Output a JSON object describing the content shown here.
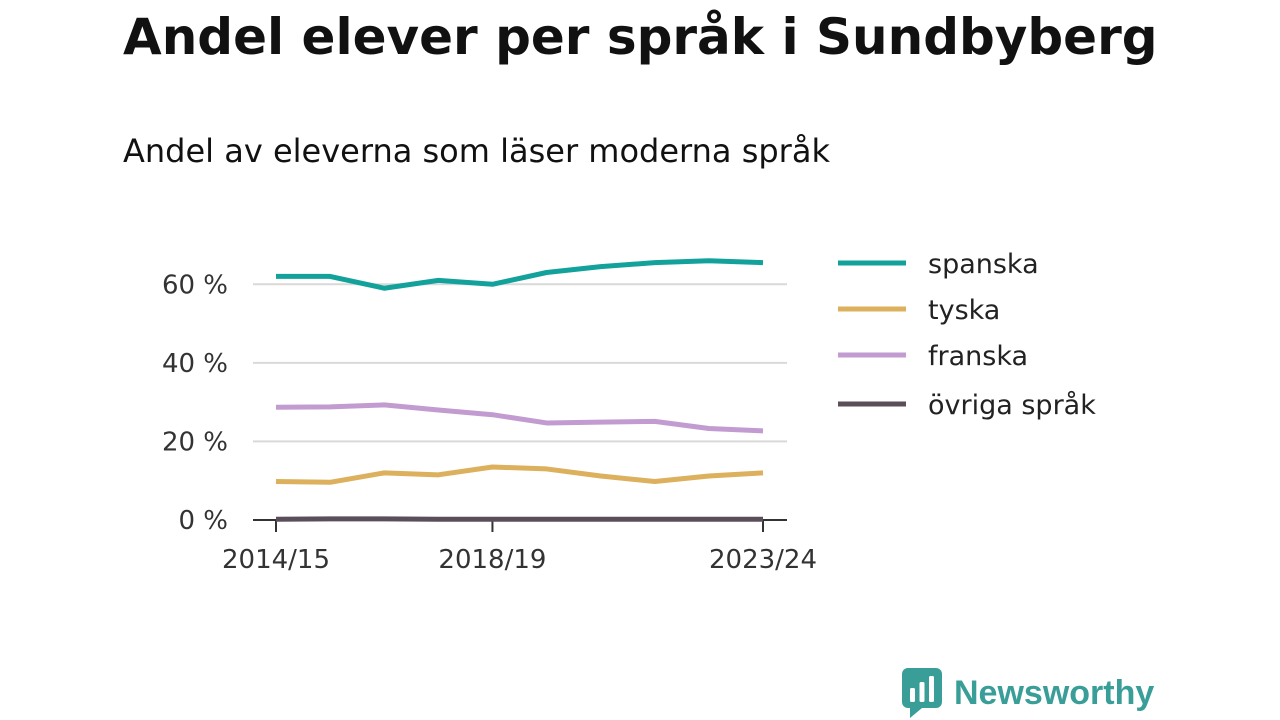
{
  "title": "Andel elever per språk i Sundbyberg",
  "subtitle": "Andel av eleverna som läser moderna språk",
  "brand": {
    "name": "Newsworthy",
    "color": "#3a9e98",
    "icon": "bar-chart-icon"
  },
  "chart_data": {
    "type": "line",
    "title": "Andel elever per språk i Sundbyberg",
    "subtitle": "Andel av eleverna som läser moderna språk",
    "xlabel": "",
    "ylabel": "",
    "x": [
      "2014/15",
      "2015/16",
      "2016/17",
      "2017/18",
      "2018/19",
      "2019/20",
      "2020/21",
      "2021/22",
      "2022/23",
      "2023/24"
    ],
    "x_tick_labels": [
      "2014/15",
      "2018/19",
      "2023/24"
    ],
    "x_tick_indices": [
      0,
      4,
      9
    ],
    "y_ticks": [
      0,
      20,
      40,
      60
    ],
    "y_tick_labels": [
      "0 %",
      "20 %",
      "40 %",
      "60 %"
    ],
    "ylim": [
      0,
      70
    ],
    "grid": true,
    "legend_position": "right",
    "series": [
      {
        "name": "spanska",
        "color": "#13a29b",
        "values": [
          62.0,
          62.0,
          59.0,
          61.0,
          60.0,
          63.0,
          64.5,
          65.5,
          66.0,
          65.5
        ]
      },
      {
        "name": "tyska",
        "color": "#dcb05c",
        "values": [
          9.8,
          9.6,
          12.0,
          11.5,
          13.5,
          13.0,
          11.2,
          9.8,
          11.2,
          12.0
        ]
      },
      {
        "name": "franska",
        "color": "#c29bd0",
        "values": [
          28.7,
          28.8,
          29.3,
          28.0,
          26.8,
          24.7,
          24.9,
          25.1,
          23.3,
          22.7
        ]
      },
      {
        "name": "övriga språk",
        "color": "#5a4e5a",
        "values": [
          0.2,
          0.3,
          0.3,
          0.2,
          0.2,
          0.2,
          0.2,
          0.2,
          0.2,
          0.2
        ]
      }
    ]
  }
}
